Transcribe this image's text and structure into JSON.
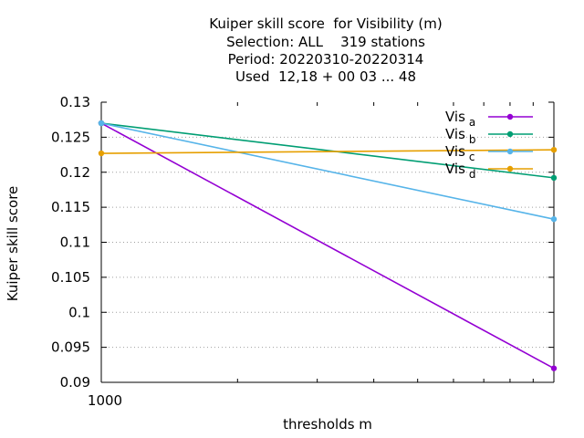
{
  "chart_data": {
    "type": "line",
    "title_lines": [
      "Kuiper skill score  for Visibility (m)",
      "Selection: ALL    319 stations",
      "Period: 20220310-20220314",
      "Used  12,18 + 00 03 ... 48"
    ],
    "xlabel": "thresholds m",
    "ylabel": "Kuiper skill score",
    "x_scale": "log",
    "x_tick_labels": [
      "1000"
    ],
    "xlim": [
      1000,
      10000
    ],
    "ylim": [
      0.09,
      0.13
    ],
    "y_ticks": [
      0.09,
      0.095,
      0.1,
      0.105,
      0.11,
      0.115,
      0.12,
      0.125,
      0.13
    ],
    "y_tick_labels": [
      "0.09",
      "0.095",
      "0.1",
      "0.105",
      "0.11",
      "0.115",
      "0.12",
      "0.125",
      "0.13"
    ],
    "grid": true,
    "legend_position": "top-right",
    "x": [
      1000,
      10000
    ],
    "series": [
      {
        "name": "Vis",
        "subscript": "a",
        "color": "#9400d3",
        "values": [
          0.127,
          0.092
        ]
      },
      {
        "name": "Vis",
        "subscript": "b",
        "color": "#009e73",
        "values": [
          0.127,
          0.1192
        ]
      },
      {
        "name": "Vis",
        "subscript": "c",
        "color": "#56b4e9",
        "values": [
          0.127,
          0.1133
        ]
      },
      {
        "name": "Vis",
        "subscript": "d",
        "color": "#e69f00",
        "values": [
          0.1227,
          0.1232
        ]
      }
    ]
  }
}
